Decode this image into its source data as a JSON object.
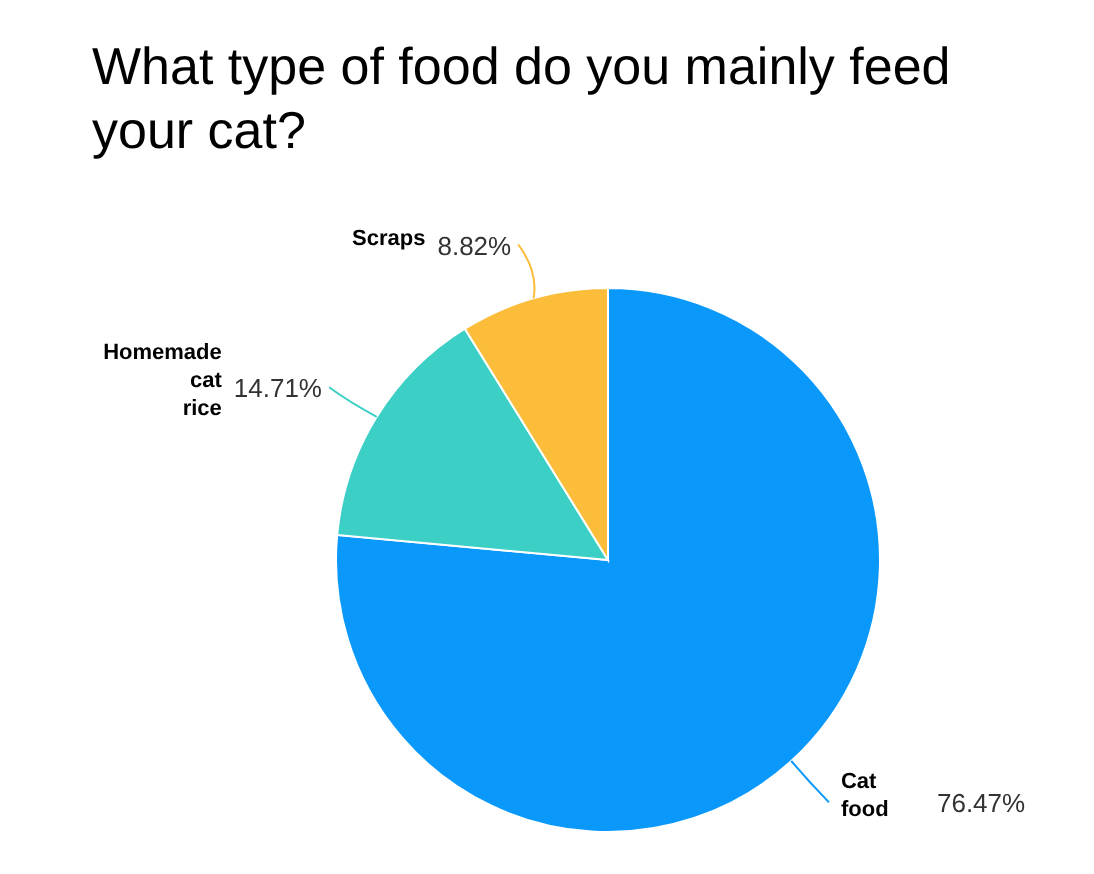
{
  "chart_data": {
    "type": "pie",
    "title": "What type of food do you mainly feed your cat?",
    "categories": [
      "Cat food",
      "Homemade cat rice",
      "Scraps"
    ],
    "values": [
      76.47,
      14.71,
      8.82
    ],
    "colors": [
      "#0a98fa",
      "#3bcfc6",
      "#fbbd3a"
    ],
    "value_labels": [
      "76.47%",
      "14.71%",
      "8.82%"
    ]
  }
}
